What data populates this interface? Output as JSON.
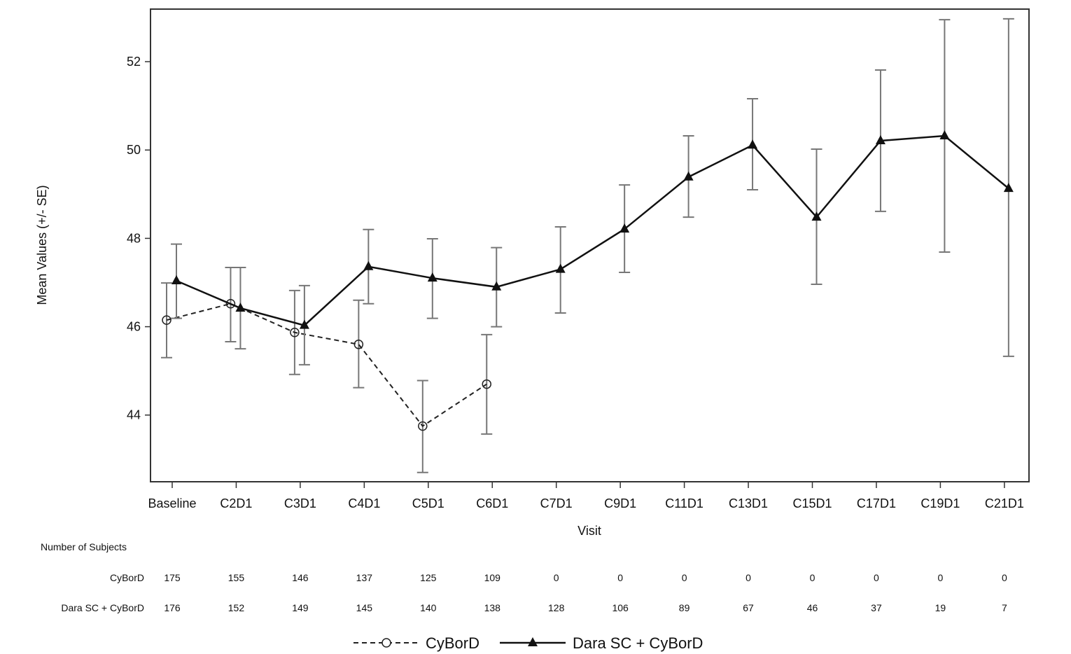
{
  "chart_data": {
    "type": "line",
    "xlabel": "Visit",
    "ylabel": "Mean Values (+/- SE)",
    "ylim": [
      42.49,
      53.19
    ],
    "yticks": [
      44,
      46,
      48,
      50,
      52
    ],
    "grid": false,
    "legend_position": "bottom",
    "categories": [
      "Baseline",
      "C2D1",
      "C3D1",
      "C4D1",
      "C5D1",
      "C6D1",
      "C7D1",
      "C9D1",
      "C11D1",
      "C13D1",
      "C15D1",
      "C17D1",
      "C19D1",
      "C21D1"
    ],
    "series": [
      {
        "name": "CyBorD",
        "style": "dashed",
        "marker": "open-circle",
        "color": "#222222",
        "values": [
          46.15,
          46.52,
          45.87,
          45.6,
          43.75,
          44.7,
          null,
          null,
          null,
          null,
          null,
          null,
          null,
          null
        ],
        "lower": [
          45.3,
          45.66,
          44.92,
          44.62,
          42.7,
          43.57,
          null,
          null,
          null,
          null,
          null,
          null,
          null,
          null
        ],
        "upper": [
          46.99,
          47.34,
          46.82,
          46.6,
          44.78,
          45.82,
          null,
          null,
          null,
          null,
          null,
          null,
          null,
          null
        ]
      },
      {
        "name": "Dara SC + CyBorD",
        "style": "solid",
        "marker": "filled-triangle",
        "color": "#111111",
        "values": [
          47.04,
          46.42,
          46.03,
          47.36,
          47.1,
          46.9,
          47.3,
          48.21,
          49.39,
          50.11,
          48.48,
          50.21,
          50.32,
          49.13
        ],
        "lower": [
          46.19,
          45.5,
          45.14,
          46.52,
          46.19,
          46.0,
          46.31,
          47.23,
          48.48,
          49.1,
          46.96,
          48.61,
          47.69,
          45.33
        ],
        "upper": [
          47.87,
          47.34,
          46.93,
          48.2,
          47.99,
          47.79,
          48.26,
          49.21,
          50.32,
          51.16,
          50.02,
          51.81,
          52.95,
          52.97
        ]
      }
    ],
    "subjects_table": {
      "title": "Number of Subjects",
      "rows": [
        {
          "label": "CyBorD",
          "values": [
            "175",
            "155",
            "146",
            "137",
            "125",
            "109",
            "0",
            "0",
            "0",
            "0",
            "0",
            "0",
            "0",
            "0"
          ]
        },
        {
          "label": "Dara SC + CyBorD",
          "values": [
            "176",
            "152",
            "149",
            "145",
            "140",
            "138",
            "128",
            "106",
            "89",
            "67",
            "46",
            "37",
            "19",
            "7"
          ]
        }
      ]
    },
    "legend": [
      "CyBorD",
      "Dara SC + CyBorD"
    ]
  }
}
